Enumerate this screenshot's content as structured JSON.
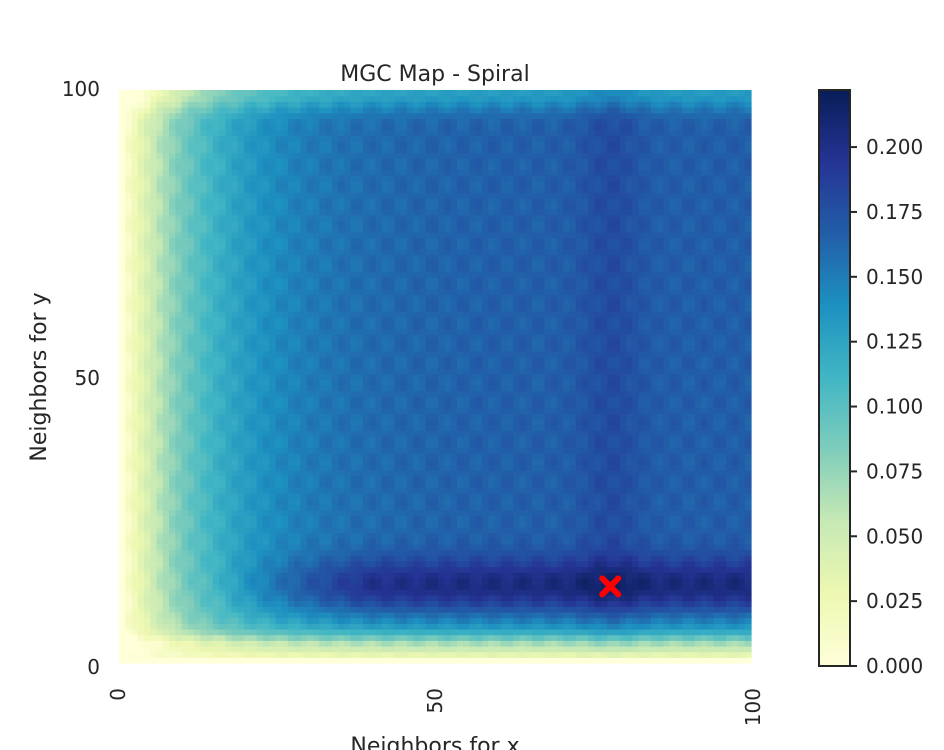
{
  "chart_data": {
    "type": "heatmap",
    "title": "MGC Map - Spiral",
    "xlabel": "Neighbors for x",
    "ylabel": "Neighbors for y",
    "xlim": [
      0,
      100
    ],
    "ylim": [
      0,
      100
    ],
    "x_ticks": [
      "0",
      "50",
      "100"
    ],
    "y_ticks": [
      "100",
      "50",
      "0"
    ],
    "colorbar": {
      "ticks": [
        "0.000",
        "0.025",
        "0.050",
        "0.075",
        "0.100",
        "0.125",
        "0.150",
        "0.175",
        "0.200"
      ],
      "range": [
        0,
        0.222
      ],
      "colormap": [
        "#ffffd9",
        "#edf8b1",
        "#c7e9b4",
        "#7fcdbb",
        "#41b6c4",
        "#1d91c0",
        "#225ea8",
        "#253494",
        "#081d58"
      ]
    },
    "optimal_scale": {
      "x": 78,
      "y": 13,
      "marker_color": "#ff0000"
    },
    "values_description_points": [
      {
        "x": 1,
        "y": 50,
        "value": 0.0
      },
      {
        "x": 5,
        "y": 50,
        "value": 0.09
      },
      {
        "x": 12,
        "y": 50,
        "value": 0.115
      },
      {
        "x": 30,
        "y": 50,
        "value": 0.16
      },
      {
        "x": 50,
        "y": 50,
        "value": 0.165
      },
      {
        "x": 78,
        "y": 50,
        "value": 0.175
      },
      {
        "x": 95,
        "y": 50,
        "value": 0.165
      },
      {
        "x": 50,
        "y": 13,
        "value": 0.215
      },
      {
        "x": 85,
        "y": 13,
        "value": 0.222
      },
      {
        "x": 50,
        "y": 99,
        "value": 0.13
      }
    ]
  }
}
